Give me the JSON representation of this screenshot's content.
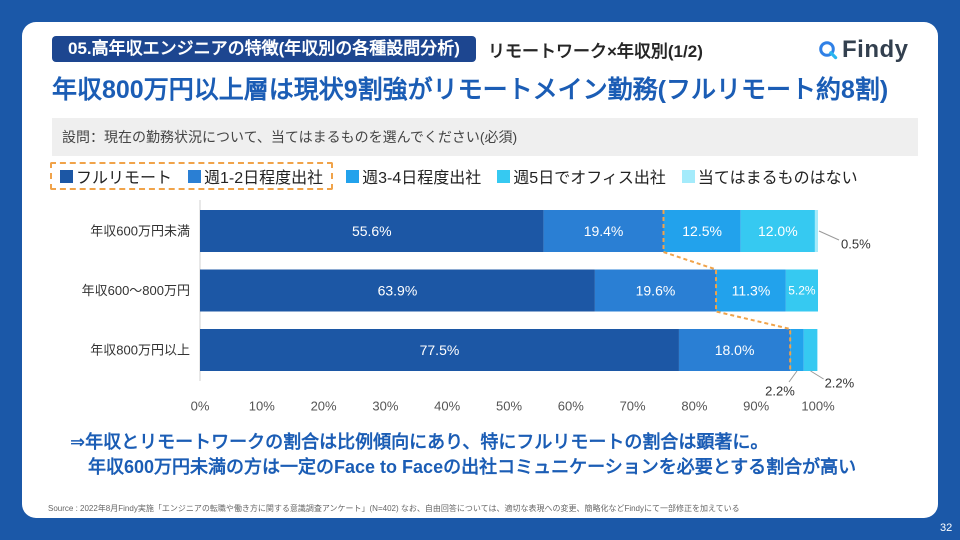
{
  "theme": {
    "frame": "#1b58a8",
    "accent": "#1b5db5",
    "pill": "#1d4690"
  },
  "header": {
    "section_label": "05.高年収エンジニアの特徴(年収別の各種設問分析)",
    "subtopic": "リモートワーク×年収別(1/2)",
    "logo_text": "Findy"
  },
  "title": "年収800万円以上層は現状9割強がリモートメイン勤務(フルリモート約8割)",
  "question": "設問：現在の勤務状況について、当てはまるものを選んでください(必須)",
  "conclusion": {
    "line1": "⇒年収とリモートワークの割合は比例傾向にあり、特にフルリモートの割合は顕著に。",
    "line2": "年収600万円未満の方は一定のFace to Faceの出社コミュニケーションを必要とする割合が高い"
  },
  "source": "Source : 2022年8月Findy実施「エンジニアの転職や働き方に関する意識調査アンケート」(N=402)  なお、自由回答については、適切な表現への変更、簡略化などFindyにて一部修正を加えている",
  "page_number": "32",
  "chart_data": {
    "type": "bar",
    "horizontal": true,
    "stacked": true,
    "categories": [
      "年収600万円未満",
      "年収600〜800万円",
      "年収800万円以上"
    ],
    "series": [
      {
        "name": "フルリモート",
        "color": "#1c57a5",
        "values": [
          55.6,
          63.9,
          77.5
        ]
      },
      {
        "name": "週1-2日程度出社",
        "color": "#2a7fd4",
        "values": [
          19.4,
          19.6,
          18.0
        ]
      },
      {
        "name": "週3-4日程度出社",
        "color": "#22a2ec",
        "values": [
          12.5,
          11.3,
          2.2
        ]
      },
      {
        "name": "週5日でオフィス出社",
        "color": "#36c9f1",
        "values": [
          12.0,
          5.2,
          2.2
        ]
      },
      {
        "name": "当てはまるものはない",
        "color": "#a4ebfb",
        "values": [
          0.5,
          null,
          null
        ]
      }
    ],
    "unit": "%",
    "xlim": [
      0,
      100
    ],
    "xticks": [
      0,
      10,
      20,
      30,
      40,
      50,
      60,
      70,
      80,
      90,
      100
    ],
    "xtick_labels": [
      "0%",
      "10%",
      "20%",
      "30%",
      "40%",
      "50%",
      "60%",
      "70%",
      "80%",
      "90%",
      "100%"
    ],
    "grid": false,
    "legend_position": "top",
    "highlight": {
      "series_indices": [
        0,
        1
      ],
      "color": "#f0a34a"
    }
  }
}
